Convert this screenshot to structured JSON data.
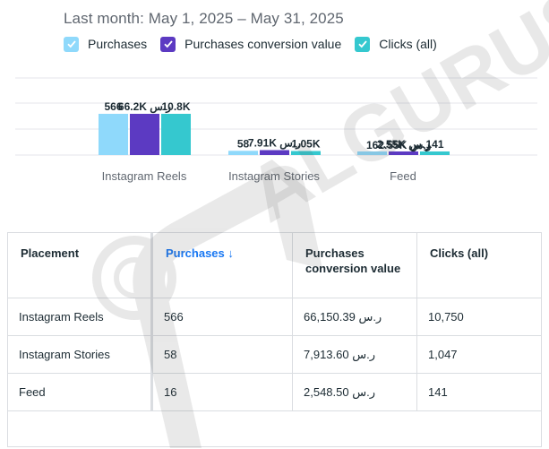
{
  "date_range": "Last month: May 1, 2025 – May 31, 2025",
  "legend": [
    {
      "label": "Purchases",
      "color": "#8fd9fb",
      "checked": true
    },
    {
      "label": "Purchases conversion value",
      "color": "#5c3ac2",
      "checked": true
    },
    {
      "label": "Clicks (all)",
      "color": "#35c8cf",
      "checked": true
    }
  ],
  "chart_data": {
    "type": "bar",
    "categories": [
      "Instagram Reels",
      "Instagram Stories",
      "Feed"
    ],
    "series": [
      {
        "name": "Purchases",
        "values": [
          566,
          58,
          16
        ],
        "labels": [
          "566",
          "58",
          ""
        ],
        "color": "#8fd9fb"
      },
      {
        "name": "Purchases conversion value",
        "values": [
          66150.39,
          7913.6,
          2548.5
        ],
        "labels": [
          "66.2K ر.س",
          "7.91K ر.س",
          "2.55K ر.س"
        ],
        "color": "#5c3ac2"
      },
      {
        "name": "Clicks (all)",
        "values": [
          10750,
          1047,
          141
        ],
        "labels": [
          "10.8K",
          "1.05K",
          "141"
        ],
        "color": "#35c8cf"
      }
    ],
    "feed_overlap_label": "162.55K ر.س",
    "grid": true,
    "legend_position": "top"
  },
  "table": {
    "headers": [
      "Placement",
      "Purchases ↓",
      "Purchases conversion value",
      "Clicks (all)"
    ],
    "rows": [
      [
        "Instagram Reels",
        "566",
        "66,150.39 ر.س",
        "10,750"
      ],
      [
        "Instagram Stories",
        "58",
        "7,913.60 ر.س",
        "1,047"
      ],
      [
        "Feed",
        "16",
        "2,548.50 ر.س",
        "141"
      ]
    ]
  },
  "watermark": "ALGURUS"
}
